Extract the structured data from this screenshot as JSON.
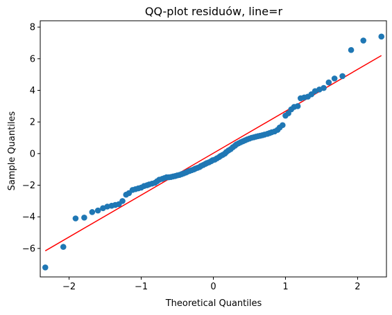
{
  "chart_data": {
    "type": "scatter",
    "title": "QQ-plot residuów, line=r",
    "xlabel": "Theoretical Quantiles",
    "ylabel": "Sample Quantiles",
    "xlim": [
      -2.4,
      2.4
    ],
    "ylim": [
      -7.8,
      8.4
    ],
    "xticks": [
      -2,
      -1,
      0,
      1,
      2
    ],
    "yticks": [
      -6,
      -4,
      -2,
      0,
      2,
      4,
      6,
      8
    ],
    "xtick_labels": [
      "−2",
      "−1",
      "0",
      "1",
      "2"
    ],
    "ytick_labels": [
      "−6",
      "−4",
      "−2",
      "0",
      "2",
      "4",
      "6",
      "8"
    ],
    "grid": false,
    "colors": {
      "points": "#1f77b4",
      "line": "#ff0000"
    },
    "reference_line": {
      "x": [
        -2.33,
        2.33
      ],
      "y": [
        -6.15,
        6.2
      ]
    },
    "points": [
      [
        -2.33,
        -7.2
      ],
      [
        -2.08,
        -5.9
      ],
      [
        -1.91,
        -4.1
      ],
      [
        -1.79,
        -4.05
      ],
      [
        -1.68,
        -3.7
      ],
      [
        -1.6,
        -3.6
      ],
      [
        -1.53,
        -3.45
      ],
      [
        -1.47,
        -3.35
      ],
      [
        -1.41,
        -3.3
      ],
      [
        -1.36,
        -3.25
      ],
      [
        -1.31,
        -3.2
      ],
      [
        -1.26,
        -3.0
      ],
      [
        -1.21,
        -2.6
      ],
      [
        -1.17,
        -2.5
      ],
      [
        -1.12,
        -2.3
      ],
      [
        -1.08,
        -2.25
      ],
      [
        -1.04,
        -2.2
      ],
      [
        -1.0,
        -2.15
      ],
      [
        -0.96,
        -2.05
      ],
      [
        -0.92,
        -2.0
      ],
      [
        -0.89,
        -1.95
      ],
      [
        -0.85,
        -1.9
      ],
      [
        -0.81,
        -1.85
      ],
      [
        -0.78,
        -1.75
      ],
      [
        -0.75,
        -1.65
      ],
      [
        -0.71,
        -1.6
      ],
      [
        -0.68,
        -1.55
      ],
      [
        -0.65,
        -1.5
      ],
      [
        -0.62,
        -1.5
      ],
      [
        -0.59,
        -1.48
      ],
      [
        -0.56,
        -1.45
      ],
      [
        -0.53,
        -1.42
      ],
      [
        -0.5,
        -1.38
      ],
      [
        -0.47,
        -1.35
      ],
      [
        -0.44,
        -1.3
      ],
      [
        -0.41,
        -1.25
      ],
      [
        -0.38,
        -1.2
      ],
      [
        -0.36,
        -1.15
      ],
      [
        -0.33,
        -1.1
      ],
      [
        -0.3,
        -1.05
      ],
      [
        -0.27,
        -1.0
      ],
      [
        -0.25,
        -0.95
      ],
      [
        -0.22,
        -0.9
      ],
      [
        -0.19,
        -0.85
      ],
      [
        -0.17,
        -0.78
      ],
      [
        -0.14,
        -0.72
      ],
      [
        -0.11,
        -0.65
      ],
      [
        -0.09,
        -0.6
      ],
      [
        -0.06,
        -0.55
      ],
      [
        -0.03,
        -0.48
      ],
      [
        -0.01,
        -0.42
      ],
      [
        0.02,
        -0.38
      ],
      [
        0.05,
        -0.3
      ],
      [
        0.08,
        -0.22
      ],
      [
        0.1,
        -0.15
      ],
      [
        0.13,
        -0.08
      ],
      [
        0.16,
        0.0
      ],
      [
        0.18,
        0.1
      ],
      [
        0.21,
        0.2
      ],
      [
        0.24,
        0.28
      ],
      [
        0.27,
        0.4
      ],
      [
        0.3,
        0.5
      ],
      [
        0.32,
        0.58
      ],
      [
        0.35,
        0.65
      ],
      [
        0.38,
        0.72
      ],
      [
        0.41,
        0.78
      ],
      [
        0.44,
        0.84
      ],
      [
        0.47,
        0.9
      ],
      [
        0.5,
        0.95
      ],
      [
        0.53,
        1.0
      ],
      [
        0.56,
        1.03
      ],
      [
        0.59,
        1.07
      ],
      [
        0.62,
        1.1
      ],
      [
        0.65,
        1.13
      ],
      [
        0.68,
        1.16
      ],
      [
        0.71,
        1.2
      ],
      [
        0.75,
        1.25
      ],
      [
        0.78,
        1.3
      ],
      [
        0.81,
        1.35
      ],
      [
        0.85,
        1.4
      ],
      [
        0.89,
        1.5
      ],
      [
        0.92,
        1.65
      ],
      [
        0.96,
        1.8
      ],
      [
        1.0,
        2.4
      ],
      [
        1.04,
        2.55
      ],
      [
        1.08,
        2.8
      ],
      [
        1.12,
        2.95
      ],
      [
        1.17,
        3.0
      ],
      [
        1.21,
        3.5
      ],
      [
        1.26,
        3.55
      ],
      [
        1.31,
        3.6
      ],
      [
        1.36,
        3.75
      ],
      [
        1.41,
        3.95
      ],
      [
        1.47,
        4.05
      ],
      [
        1.53,
        4.15
      ],
      [
        1.6,
        4.5
      ],
      [
        1.68,
        4.75
      ],
      [
        1.79,
        4.9
      ],
      [
        1.91,
        6.55
      ],
      [
        2.08,
        7.15
      ],
      [
        2.33,
        7.4
      ]
    ]
  }
}
